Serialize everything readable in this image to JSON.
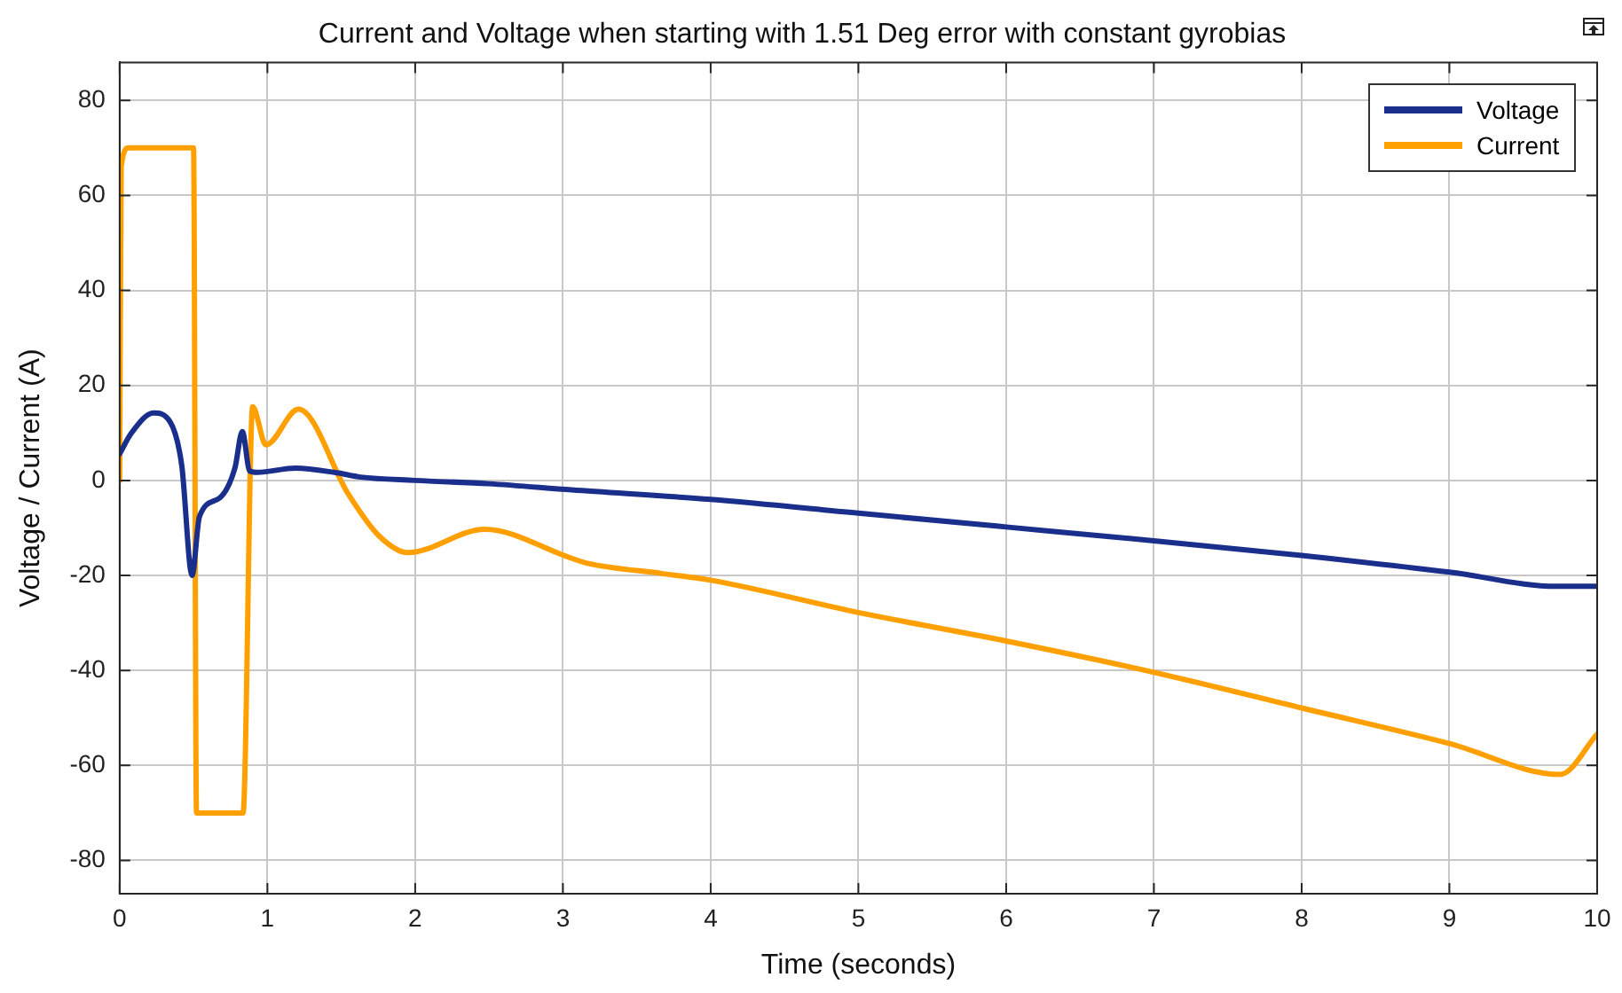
{
  "chart_data": {
    "type": "line",
    "title": "Current and Voltage when starting with 1.51 Deg error with constant gyrobias",
    "xlabel": "Time (seconds)",
    "ylabel": "Voltage / Current (A)",
    "xlim": [
      0,
      10
    ],
    "ylim": [
      -87,
      88
    ],
    "xticks": [
      0,
      1,
      2,
      3,
      4,
      5,
      6,
      7,
      8,
      9,
      10
    ],
    "yticks": [
      -80,
      -60,
      -40,
      -20,
      0,
      20,
      40,
      60,
      80
    ],
    "grid": true,
    "legend": "top right",
    "line_style": "solid",
    "marker": "none",
    "series": [
      {
        "name": "Voltage",
        "color": "#1a2e8c",
        "x": [
          0,
          0.08,
          0.23,
          0.34,
          0.42,
          0.49,
          0.54,
          0.68,
          0.78,
          0.83,
          0.88,
          0.93,
          1.19,
          1.47,
          1.63,
          2,
          2.5,
          3.06,
          4,
          5,
          6,
          7,
          8,
          9,
          9.73,
          10
        ],
        "values": [
          5.6,
          10,
          14.2,
          12.4,
          3.2,
          -20,
          -7.6,
          -3.6,
          2.6,
          10.3,
          2,
          1.7,
          2.6,
          1.6,
          0.7,
          0,
          -0.7,
          -2,
          -4,
          -6.9,
          -9.8,
          -12.7,
          -15.8,
          -19.3,
          -22.3,
          -22.3
        ]
      },
      {
        "name": "Current",
        "color": "#ffa000",
        "x": [
          0,
          0.01,
          0.06,
          0.5,
          0.52,
          0.835,
          0.9,
          0.99,
          1.21,
          1.55,
          1.75,
          1.95,
          2.47,
          3.06,
          3.16,
          3.67,
          4,
          5,
          6,
          7,
          8,
          9,
          9.75,
          10
        ],
        "values": [
          0,
          66,
          70,
          70,
          -70,
          -70,
          15.5,
          7.5,
          15,
          -3,
          -11.5,
          -15.2,
          -10.3,
          -16.4,
          -17.4,
          -19.6,
          -21,
          -27.8,
          -33.8,
          -40.4,
          -47.9,
          -55.4,
          -61.9,
          -53.4
        ]
      }
    ]
  }
}
